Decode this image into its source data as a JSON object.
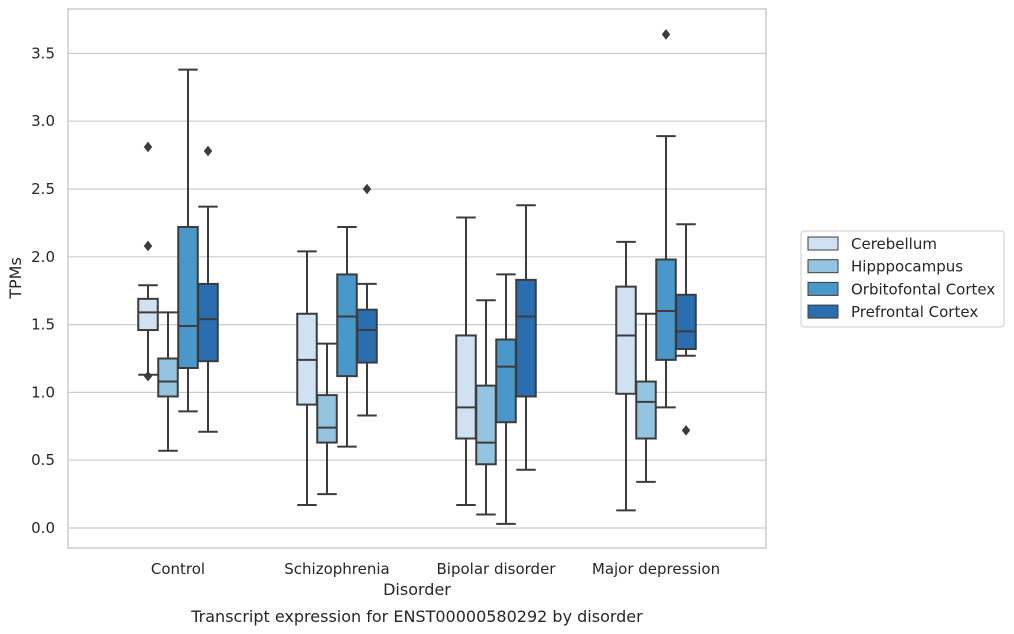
{
  "chart_data": {
    "type": "box",
    "title": "",
    "caption": "Transcript expression for ENST00000580292 by disorder",
    "xlabel": "Disorder",
    "ylabel": "TPMs",
    "ylim": [
      -0.15,
      3.82
    ],
    "yticks": [
      "0.0",
      "0.5",
      "1.0",
      "1.5",
      "2.0",
      "2.5",
      "3.0",
      "3.5"
    ],
    "grid": "horizontal",
    "legend_position": "right",
    "categories": [
      "Control",
      "Schizophrenia",
      "Bipolar disorder",
      "Major depression"
    ],
    "series": [
      {
        "name": "Cerebellum",
        "color": "#d0e1f2",
        "boxes": [
          {
            "whislo": 1.13,
            "q1": 1.46,
            "med": 1.59,
            "q3": 1.69,
            "whishi": 1.79,
            "fliers": [
              2.81,
              2.08,
              1.12
            ]
          },
          {
            "whislo": 0.17,
            "q1": 0.91,
            "med": 1.24,
            "q3": 1.58,
            "whishi": 2.04,
            "fliers": []
          },
          {
            "whislo": 0.17,
            "q1": 0.66,
            "med": 0.89,
            "q3": 1.42,
            "whishi": 2.29,
            "fliers": []
          },
          {
            "whislo": 0.13,
            "q1": 0.99,
            "med": 1.42,
            "q3": 1.78,
            "whishi": 2.11,
            "fliers": []
          }
        ]
      },
      {
        "name": "Hipppocampus",
        "color": "#94c4df",
        "boxes": [
          {
            "whislo": 0.57,
            "q1": 0.97,
            "med": 1.08,
            "q3": 1.25,
            "whishi": 1.59,
            "fliers": []
          },
          {
            "whislo": 0.25,
            "q1": 0.63,
            "med": 0.74,
            "q3": 0.98,
            "whishi": 1.36,
            "fliers": []
          },
          {
            "whislo": 0.1,
            "q1": 0.47,
            "med": 0.63,
            "q3": 1.05,
            "whishi": 1.68,
            "fliers": []
          },
          {
            "whislo": 0.34,
            "q1": 0.66,
            "med": 0.93,
            "q3": 1.08,
            "whishi": 1.58,
            "fliers": []
          }
        ]
      },
      {
        "name": "Orbitofontal Cortex",
        "color": "#4a98c9",
        "boxes": [
          {
            "whislo": 0.86,
            "q1": 1.18,
            "med": 1.49,
            "q3": 2.22,
            "whishi": 3.38,
            "fliers": []
          },
          {
            "whislo": 0.6,
            "q1": 1.12,
            "med": 1.56,
            "q3": 1.87,
            "whishi": 2.22,
            "fliers": []
          },
          {
            "whislo": 0.03,
            "q1": 0.78,
            "med": 1.19,
            "q3": 1.39,
            "whishi": 1.87,
            "fliers": []
          },
          {
            "whislo": 0.89,
            "q1": 1.24,
            "med": 1.6,
            "q3": 1.98,
            "whishi": 2.89,
            "fliers": [
              3.64
            ]
          }
        ]
      },
      {
        "name": "Prefrontal Cortex",
        "color": "#2a6eb0",
        "boxes": [
          {
            "whislo": 0.71,
            "q1": 1.23,
            "med": 1.54,
            "q3": 1.8,
            "whishi": 2.37,
            "fliers": [
              2.78
            ]
          },
          {
            "whislo": 0.83,
            "q1": 1.22,
            "med": 1.46,
            "q3": 1.61,
            "whishi": 1.8,
            "fliers": [
              2.5
            ]
          },
          {
            "whislo": 0.43,
            "q1": 0.97,
            "med": 1.56,
            "q3": 1.83,
            "whishi": 2.38,
            "fliers": []
          },
          {
            "whislo": 1.27,
            "q1": 1.32,
            "med": 1.45,
            "q3": 1.72,
            "whishi": 2.24,
            "fliers": [
              0.72
            ]
          }
        ]
      }
    ]
  }
}
